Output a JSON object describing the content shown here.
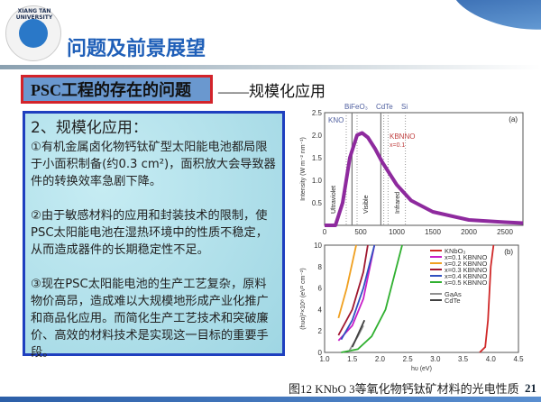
{
  "header": {
    "logo_text": "XIANG TAN UNIVERSITY",
    "title": "问题及前景展望"
  },
  "section": {
    "tag": "PSC工程的存在的问题",
    "subtitle": "——规模化应用"
  },
  "content": {
    "heading": "2、规模化应用：",
    "paragraphs": [
      "①有机金属卤化物钙钛矿型太阳能电池都局限于小面积制备(约0.3 cm²)，面积放大会导致器件的转换效率急剧下降。",
      "②由于敏感材料的应用和封装技术的限制，使PSC太阳能电池在湿热环境中的性质不稳定，从而造成器件的长期稳定性不足。",
      "③现在PSC太阳能电池的生产工艺复杂，原料物价高昂，造成难以大规模地形成产业化推广和商品化应用。而简化生产工艺技术和突破廉价、高效的材料技术是实现这一目标的重要手段。"
    ]
  },
  "caption": "图12 KNbO 3等氧化物钙钛矿材料的光电性质",
  "page_number": "21",
  "chart_data": [
    {
      "type": "line",
      "panel_label": "(a)",
      "xlabel": "",
      "ylabel": "Intensity (W m⁻² nm⁻¹)",
      "xlim": [
        0,
        2750
      ],
      "ylim": [
        0,
        2.5
      ],
      "xticks": [
        "0",
        "500",
        "1000",
        "1500",
        "2000",
        "2500"
      ],
      "yticks": [
        "0.5",
        "1.0",
        "1.5",
        "2.0",
        "2.5"
      ],
      "series": [
        {
          "color": "#8e2a9e",
          "x": [
            0,
            150,
            250,
            350,
            450,
            520,
            600,
            700,
            800,
            1000,
            1200,
            1500,
            2000,
            2500,
            2750
          ],
          "y": [
            0,
            0,
            0.5,
            1.5,
            2.0,
            2.05,
            1.95,
            1.7,
            1.4,
            0.9,
            0.55,
            0.3,
            0.12,
            0.07,
            0.05
          ]
        }
      ],
      "solid_lines": [
        380,
        780
      ],
      "dotted_lines": [
        300,
        450,
        820,
        880,
        1120
      ],
      "annotations": {
        "top": [
          "BiFeO₃",
          "CdTe",
          "Si"
        ],
        "kno": "KNO",
        "kbnno": "KBNNO",
        "kbnno_x": "x=0.1",
        "regions": [
          "Ultraviolet",
          "Visible",
          "Infrared"
        ]
      }
    },
    {
      "type": "line",
      "panel_label": "(b)",
      "xlabel": "hυ (eV)",
      "ylabel": "(hυα)²×10⁸ (eV² cm⁻²)",
      "xlim": [
        1.0,
        4.5
      ],
      "ylim": [
        0,
        10
      ],
      "xticks": [
        "1.0",
        "1.5",
        "2.0",
        "2.5",
        "3.0",
        "3.5",
        "4.0",
        "4.5"
      ],
      "yticks": [
        "0",
        "2",
        "4",
        "6",
        "8",
        "10"
      ],
      "legend": "top-right",
      "series": [
        {
          "name": "KNbO₃",
          "color": "#d02828",
          "x": [
            3.8,
            3.9,
            3.95,
            4.0,
            4.05
          ],
          "y": [
            0,
            0.5,
            3,
            8,
            10
          ]
        },
        {
          "name": "x=0.1 KBNNO",
          "color": "#c81ec8",
          "x": [
            1.25,
            1.5,
            1.7,
            1.9
          ],
          "y": [
            1.1,
            2.5,
            5,
            10
          ]
        },
        {
          "name": "x=0.2 KBNNO",
          "color": "#f0a020",
          "x": [
            1.25,
            1.4,
            1.57
          ],
          "y": [
            3.2,
            6,
            10
          ]
        },
        {
          "name": "x=0.3 KBNNO",
          "color": "#a01830",
          "x": [
            1.25,
            1.5,
            1.7,
            1.78
          ],
          "y": [
            1.6,
            4,
            7.5,
            10
          ]
        },
        {
          "name": "x=0.4 KBNNO",
          "color": "#3050c0",
          "x": [
            1.3,
            1.5,
            1.7,
            1.9
          ],
          "y": [
            1.2,
            3,
            6,
            10
          ]
        },
        {
          "name": "x=0.5 KBNNO",
          "color": "#30b030",
          "x": [
            1.3,
            1.6,
            1.85,
            2.1,
            2.4
          ],
          "y": [
            0,
            0.3,
            1.5,
            4,
            10
          ]
        },
        {
          "name": "GaAs",
          "color": "#909090",
          "x": [
            1.45,
            1.6,
            1.7
          ],
          "y": [
            0.2,
            1.5,
            2.5
          ]
        },
        {
          "name": "CdTe",
          "color": "#404040",
          "x": [
            1.5,
            1.72
          ],
          "y": [
            0.5,
            3
          ]
        }
      ]
    }
  ]
}
